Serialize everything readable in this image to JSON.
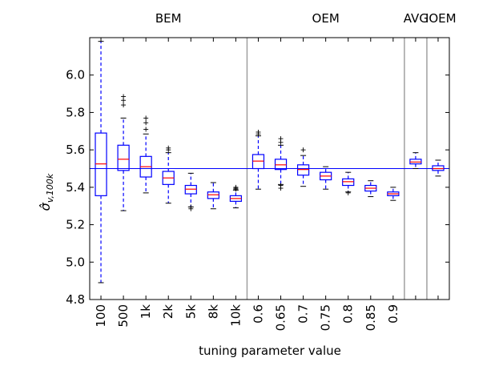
{
  "chart_data": {
    "type": "boxplot",
    "title": "",
    "xlabel": "tuning parameter value",
    "ylabel": "σ̂",
    "ylabel_sub": "v,100k",
    "ylim": [
      4.8,
      6.2
    ],
    "yticks": [
      "4.8",
      "5.0",
      "5.2",
      "5.4",
      "5.6",
      "5.8",
      "6.0"
    ],
    "reference_line": 5.5,
    "groups": [
      {
        "name": "BEM",
        "first_box": 0,
        "last_box": 6
      },
      {
        "name": "OEM",
        "first_box": 7,
        "last_box": 13
      },
      {
        "name": "AVG",
        "first_box": 14,
        "last_box": 14
      },
      {
        "name": "IOEM",
        "first_box": 15,
        "last_box": 15
      }
    ],
    "boxes": [
      {
        "label": "100",
        "q1": 5.355,
        "median": 5.525,
        "q3": 5.69,
        "whisker_low": 4.89,
        "whisker_high": 6.18,
        "outliers": []
      },
      {
        "label": "500",
        "q1": 5.49,
        "median": 5.55,
        "q3": 5.625,
        "whisker_low": 5.275,
        "whisker_high": 5.77,
        "outliers": [
          5.84,
          5.865,
          5.885
        ]
      },
      {
        "label": "1k",
        "q1": 5.455,
        "median": 5.51,
        "q3": 5.565,
        "whisker_low": 5.37,
        "whisker_high": 5.685,
        "outliers": [
          5.71,
          5.745,
          5.77
        ]
      },
      {
        "label": "2k",
        "q1": 5.415,
        "median": 5.45,
        "q3": 5.485,
        "whisker_low": 5.315,
        "whisker_high": 5.585,
        "outliers": [
          5.6,
          5.61
        ]
      },
      {
        "label": "5k",
        "q1": 5.365,
        "median": 5.39,
        "q3": 5.41,
        "whisker_low": 5.295,
        "whisker_high": 5.475,
        "outliers": [
          5.285,
          5.295
        ]
      },
      {
        "label": "8k",
        "q1": 5.34,
        "median": 5.36,
        "q3": 5.375,
        "whisker_low": 5.285,
        "whisker_high": 5.425,
        "outliers": []
      },
      {
        "label": "10k",
        "q1": 5.325,
        "median": 5.34,
        "q3": 5.355,
        "whisker_low": 5.29,
        "whisker_high": 5.385,
        "outliers": [
          5.39,
          5.395,
          5.4
        ]
      },
      {
        "label": "0.6",
        "q1": 5.5,
        "median": 5.54,
        "q3": 5.575,
        "whisker_low": 5.39,
        "whisker_high": 5.675,
        "outliers": [
          5.685,
          5.695
        ]
      },
      {
        "label": "0.65",
        "q1": 5.495,
        "median": 5.52,
        "q3": 5.55,
        "whisker_low": 5.415,
        "whisker_high": 5.625,
        "outliers": [
          5.395,
          5.41,
          5.64,
          5.66
        ]
      },
      {
        "label": "0.7",
        "q1": 5.465,
        "median": 5.495,
        "q3": 5.52,
        "whisker_low": 5.405,
        "whisker_high": 5.57,
        "outliers": [
          5.6
        ]
      },
      {
        "label": "0.75",
        "q1": 5.44,
        "median": 5.46,
        "q3": 5.48,
        "whisker_low": 5.39,
        "whisker_high": 5.51,
        "outliers": []
      },
      {
        "label": "0.8",
        "q1": 5.41,
        "median": 5.43,
        "q3": 5.445,
        "whisker_low": 5.375,
        "whisker_high": 5.48,
        "outliers": [
          5.37
        ]
      },
      {
        "label": "0.85",
        "q1": 5.38,
        "median": 5.395,
        "q3": 5.41,
        "whisker_low": 5.35,
        "whisker_high": 5.435,
        "outliers": []
      },
      {
        "label": "0.9",
        "q1": 5.355,
        "median": 5.365,
        "q3": 5.375,
        "whisker_low": 5.33,
        "whisker_high": 5.4,
        "outliers": []
      },
      {
        "label": "",
        "q1": 5.525,
        "median": 5.535,
        "q3": 5.55,
        "whisker_low": 5.5,
        "whisker_high": 5.585,
        "outliers": []
      },
      {
        "label": "",
        "q1": 5.49,
        "median": 5.5,
        "q3": 5.515,
        "whisker_low": 5.46,
        "whisker_high": 5.545,
        "outliers": []
      }
    ],
    "colors": {
      "box": "#0000ff",
      "median": "#ff0000",
      "reference": "#0000ff",
      "separator": "#a0a0a0",
      "frame": "#000000"
    }
  }
}
